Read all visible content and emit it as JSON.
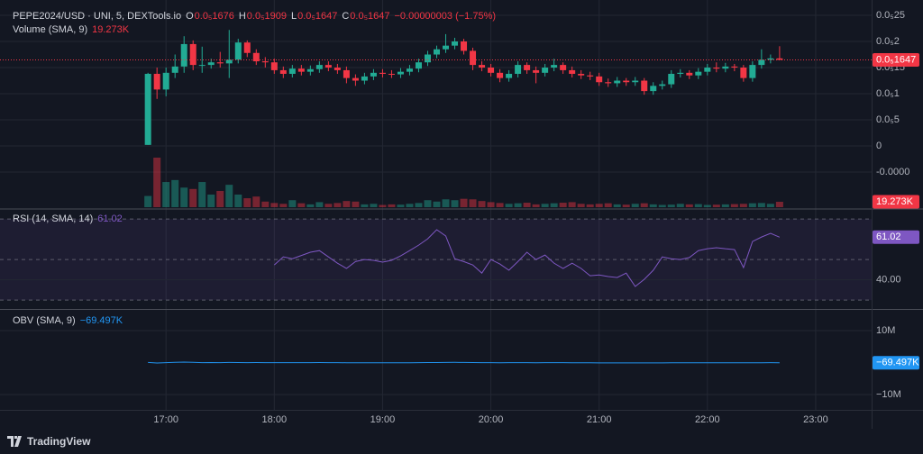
{
  "chart_data": [
    {
      "type": "candlestick",
      "title": "PEPE2024/USD · UNI, 5, DEXTools.io",
      "ohlc_header": [
        {
          "key": "O",
          "label": "0.0₅1676"
        },
        {
          "key": "H",
          "label": "0.0₅1909"
        },
        {
          "key": "L",
          "label": "0.0₅1647"
        },
        {
          "key": "C",
          "label": "0.0₅1647"
        }
      ],
      "change_label": "−0.00000003 (−1.75%)",
      "last_price_label": "0.0₅1647",
      "up_color": "#22ab94",
      "down_color": "#f23645",
      "x": [
        "16:50",
        "16:55",
        "17:00",
        "17:05",
        "17:10",
        "17:15",
        "17:20",
        "17:25",
        "17:30",
        "17:35",
        "17:40",
        "17:45",
        "17:50",
        "17:55",
        "18:00",
        "18:05",
        "18:10",
        "18:15",
        "18:20",
        "18:25",
        "18:30",
        "18:35",
        "18:40",
        "18:45",
        "18:50",
        "18:55",
        "19:00",
        "19:05",
        "19:10",
        "19:15",
        "19:20",
        "19:25",
        "19:30",
        "19:35",
        "19:40",
        "19:45",
        "19:50",
        "19:55",
        "20:00",
        "20:05",
        "20:10",
        "20:15",
        "20:20",
        "20:25",
        "20:30",
        "20:35",
        "20:40",
        "20:45",
        "20:50",
        "20:55",
        "21:00",
        "21:05",
        "21:10",
        "21:15",
        "21:20",
        "21:25",
        "21:30",
        "21:35",
        "21:40",
        "21:45",
        "21:50",
        "21:55",
        "22:00",
        "22:05",
        "22:10",
        "22:15",
        "22:20",
        "22:25",
        "22:30",
        "22:35",
        "22:40"
      ],
      "open": [
        2e-08,
        1.38e-06,
        1.08e-06,
        1.4e-06,
        1.52e-06,
        1.95e-06,
        1.55e-06,
        1.55e-06,
        1.6e-06,
        1.58e-06,
        1.65e-06,
        1.98e-06,
        1.78e-06,
        1.62e-06,
        1.6e-06,
        1.45e-06,
        1.38e-06,
        1.48e-06,
        1.42e-06,
        1.47e-06,
        1.55e-06,
        1.5e-06,
        1.45e-06,
        1.3e-06,
        1.25e-06,
        1.33e-06,
        1.4e-06,
        1.38e-06,
        1.37e-06,
        1.42e-06,
        1.48e-06,
        1.6e-06,
        1.75e-06,
        1.85e-06,
        1.92e-06,
        2e-06,
        1.82e-06,
        1.55e-06,
        1.5e-06,
        1.4e-06,
        1.3e-06,
        1.38e-06,
        1.55e-06,
        1.45e-06,
        1.4e-06,
        1.5e-06,
        1.55e-06,
        1.45e-06,
        1.38e-06,
        1.35e-06,
        1.33e-06,
        1.22e-06,
        1.2e-06,
        1.25e-06,
        1.22e-06,
        1.25e-06,
        1.05e-06,
        1.15e-06,
        1.18e-06,
        1.38e-06,
        1.4e-06,
        1.35e-06,
        1.42e-06,
        1.5e-06,
        1.48e-06,
        1.52e-06,
        1.5e-06,
        1.3e-06,
        1.55e-06,
        1.65e-06,
        1.676e-06
      ],
      "high": [
        1.4e-06,
        1.5e-06,
        1.5e-06,
        1.75e-06,
        2.1e-06,
        2.02e-06,
        1.9e-06,
        1.67e-06,
        1.8e-06,
        2.22e-06,
        2.05e-06,
        2.02e-06,
        1.85e-06,
        1.7e-06,
        1.67e-06,
        1.52e-06,
        1.55e-06,
        1.55e-06,
        1.54e-06,
        1.62e-06,
        1.62e-06,
        1.57e-06,
        1.52e-06,
        1.37e-06,
        1.4e-06,
        1.47e-06,
        1.47e-06,
        1.45e-06,
        1.49e-06,
        1.55e-06,
        1.67e-06,
        1.82e-06,
        1.92e-06,
        2.14e-06,
        2.07e-06,
        2.05e-06,
        1.88e-06,
        1.62e-06,
        1.57e-06,
        1.47e-06,
        1.45e-06,
        1.62e-06,
        1.6e-06,
        1.52e-06,
        1.57e-06,
        1.67e-06,
        1.6e-06,
        1.52e-06,
        1.45e-06,
        1.42e-06,
        1.4e-06,
        1.29e-06,
        1.32e-06,
        1.3e-06,
        1.32e-06,
        1.3e-06,
        1.22e-06,
        1.25e-06,
        1.45e-06,
        1.47e-06,
        1.45e-06,
        1.49e-06,
        1.57e-06,
        1.6e-06,
        1.59e-06,
        1.57e-06,
        1.55e-06,
        1.62e-06,
        1.85e-06,
        1.75e-06,
        1.909e-06
      ],
      "low": [
        2e-08,
        9e-07,
        9.5e-07,
        1.3e-06,
        1.4e-06,
        1.45e-06,
        1.4e-06,
        1.48e-06,
        1.5e-06,
        1.3e-06,
        1.58e-06,
        1.7e-06,
        1.55e-06,
        1.5e-06,
        1.38e-06,
        1.3e-06,
        1.31e-06,
        1.35e-06,
        1.35e-06,
        1.4e-06,
        1.43e-06,
        1.38e-06,
        1.2e-06,
        1.15e-06,
        1.18e-06,
        1.26e-06,
        1.31e-06,
        1.3e-06,
        1.3e-06,
        1.35e-06,
        1.41e-06,
        1.53e-06,
        1.68e-06,
        1.78e-06,
        1.85e-06,
        1.75e-06,
        1.45e-06,
        1.43e-06,
        1.33e-06,
        1.22e-06,
        1.23e-06,
        1.31e-06,
        1.38e-06,
        1.2e-06,
        1.33e-06,
        1.43e-06,
        1.38e-06,
        1.31e-06,
        1.28e-06,
        1.26e-06,
        1.15e-06,
        1.13e-06,
        1.13e-06,
        1.15e-06,
        1.15e-06,
        9.8e-07,
        9.8e-07,
        1.08e-06,
        1.11e-06,
        1.31e-06,
        1.28e-06,
        1.28e-06,
        1.35e-06,
        1.41e-06,
        1.41e-06,
        1.43e-06,
        1.23e-06,
        1.23e-06,
        1.48e-06,
        1.58e-06,
        1.647e-06
      ],
      "close": [
        1.38e-06,
        1.08e-06,
        1.4e-06,
        1.52e-06,
        1.95e-06,
        1.55e-06,
        1.55e-06,
        1.6e-06,
        1.58e-06,
        1.65e-06,
        1.98e-06,
        1.78e-06,
        1.62e-06,
        1.6e-06,
        1.45e-06,
        1.38e-06,
        1.48e-06,
        1.42e-06,
        1.47e-06,
        1.55e-06,
        1.5e-06,
        1.45e-06,
        1.3e-06,
        1.25e-06,
        1.33e-06,
        1.4e-06,
        1.38e-06,
        1.37e-06,
        1.42e-06,
        1.48e-06,
        1.6e-06,
        1.75e-06,
        1.85e-06,
        1.92e-06,
        2e-06,
        1.82e-06,
        1.55e-06,
        1.5e-06,
        1.4e-06,
        1.3e-06,
        1.38e-06,
        1.55e-06,
        1.45e-06,
        1.4e-06,
        1.5e-06,
        1.55e-06,
        1.45e-06,
        1.38e-06,
        1.35e-06,
        1.33e-06,
        1.22e-06,
        1.2e-06,
        1.25e-06,
        1.22e-06,
        1.25e-06,
        1.05e-06,
        1.15e-06,
        1.18e-06,
        1.38e-06,
        1.4e-06,
        1.35e-06,
        1.42e-06,
        1.5e-06,
        1.48e-06,
        1.52e-06,
        1.5e-06,
        1.3e-06,
        1.55e-06,
        1.65e-06,
        1.676e-06,
        1.647e-06
      ],
      "volume": {
        "name": "Volume (SMA, 9)",
        "axis": "y2",
        "last_label": "19.273K",
        "values": [
          40000,
          177000,
          90000,
          97000,
          70000,
          65000,
          90000,
          45000,
          58000,
          80000,
          45000,
          32000,
          38000,
          20000,
          15000,
          12000,
          25000,
          14000,
          10000,
          18000,
          12000,
          15000,
          22000,
          20000,
          10000,
          12000,
          8000,
          10000,
          9000,
          12000,
          15000,
          25000,
          20000,
          28000,
          25000,
          30000,
          28000,
          22000,
          18000,
          15000,
          12000,
          14000,
          16000,
          10000,
          12000,
          14000,
          16000,
          18000,
          12000,
          10000,
          12000,
          14000,
          10000,
          9000,
          12000,
          14000,
          10000,
          8000,
          9000,
          12000,
          10000,
          11000,
          8000,
          9000,
          10000,
          11000,
          12000,
          14000,
          15000,
          12000,
          19273
        ]
      },
      "xlim": [
        "15:28",
        "23:31"
      ],
      "xticks": [
        "17:00",
        "18:00",
        "19:00",
        "20:00",
        "21:00",
        "22:00",
        "23:00"
      ],
      "ylim": [
        -1.172e-06,
        2.707e-06
      ],
      "yticks": [
        {
          "value": 2.5e-06,
          "label": "0.0₅25"
        },
        {
          "value": 2e-06,
          "label": "0.0₅2"
        },
        {
          "value": 1.5e-06,
          "label": "0.0₅15"
        },
        {
          "value": 1e-06,
          "label": "0.0₅1"
        },
        {
          "value": 5e-07,
          "label": "0.0₅5"
        },
        0,
        {
          "value": -5e-07,
          "label": "-0.0000"
        }
      ],
      "y2lim": [
        0,
        724000
      ],
      "grid": true
    },
    {
      "type": "line",
      "title": "RSI (14, SMA, 14)",
      "color": "#7e57c2",
      "values": [
        null,
        null,
        null,
        null,
        null,
        null,
        null,
        null,
        null,
        null,
        null,
        null,
        null,
        null,
        47.3,
        51.3,
        50.4,
        52,
        53.6,
        54.4,
        51.3,
        48.2,
        45.6,
        49,
        50,
        49.6,
        48.7,
        49.6,
        51.8,
        54.4,
        57.1,
        60.2,
        64.7,
        61.6,
        50.4,
        49,
        47.3,
        43.3,
        50,
        47.8,
        44.7,
        49,
        53.6,
        50,
        52.2,
        48.2,
        45.6,
        48.2,
        45.6,
        42,
        42.4,
        41.6,
        41.1,
        43.3,
        36.7,
        40.2,
        44.7,
        51.3,
        50.4,
        50,
        51,
        54.4,
        55.3,
        55.8,
        55.3,
        54.9,
        46,
        58.9,
        61.1,
        62.9,
        61.02
      ],
      "ylim": [
        25.6,
        73.6
      ],
      "yticks": [
        {
          "value": 40,
          "label": "40.00"
        }
      ],
      "hlines": [
        70,
        50,
        30
      ]
    },
    {
      "type": "line",
      "title": "OBV (SMA, 9)",
      "color": "#2196f3",
      "last_label": "−69.497K",
      "values": [
        40000,
        -137000,
        -47000,
        50000,
        120000,
        55000,
        -35000,
        10000,
        -48000,
        32000,
        -13000,
        -45000,
        -7000,
        -27000,
        -42000,
        -54000,
        -29000,
        -43000,
        -33000,
        -15000,
        -27000,
        -42000,
        -64000,
        -84000,
        -74000,
        -62000,
        -70000,
        -80000,
        -71000,
        -59000,
        -44000,
        -19000,
        1000,
        29000,
        54000,
        24000,
        -4000,
        -26000,
        -44000,
        -59000,
        -47000,
        -33000,
        -49000,
        -59000,
        -47000,
        -33000,
        -49000,
        -67000,
        -79000,
        -89000,
        -101000,
        -115000,
        -105000,
        -114000,
        -102000,
        -116000,
        -106000,
        -98000,
        -89000,
        -77000,
        -87000,
        -76000,
        -68000,
        -77000,
        -67000,
        -78000,
        -90000,
        -76000,
        -61000,
        -50000,
        -69497
      ],
      "ylim": [
        -14800000,
        16200000
      ],
      "yticks": [
        {
          "value": 10000000,
          "label": "10M"
        },
        {
          "value": -10000000,
          "label": "−10M"
        }
      ]
    }
  ],
  "brand": "TradingView"
}
